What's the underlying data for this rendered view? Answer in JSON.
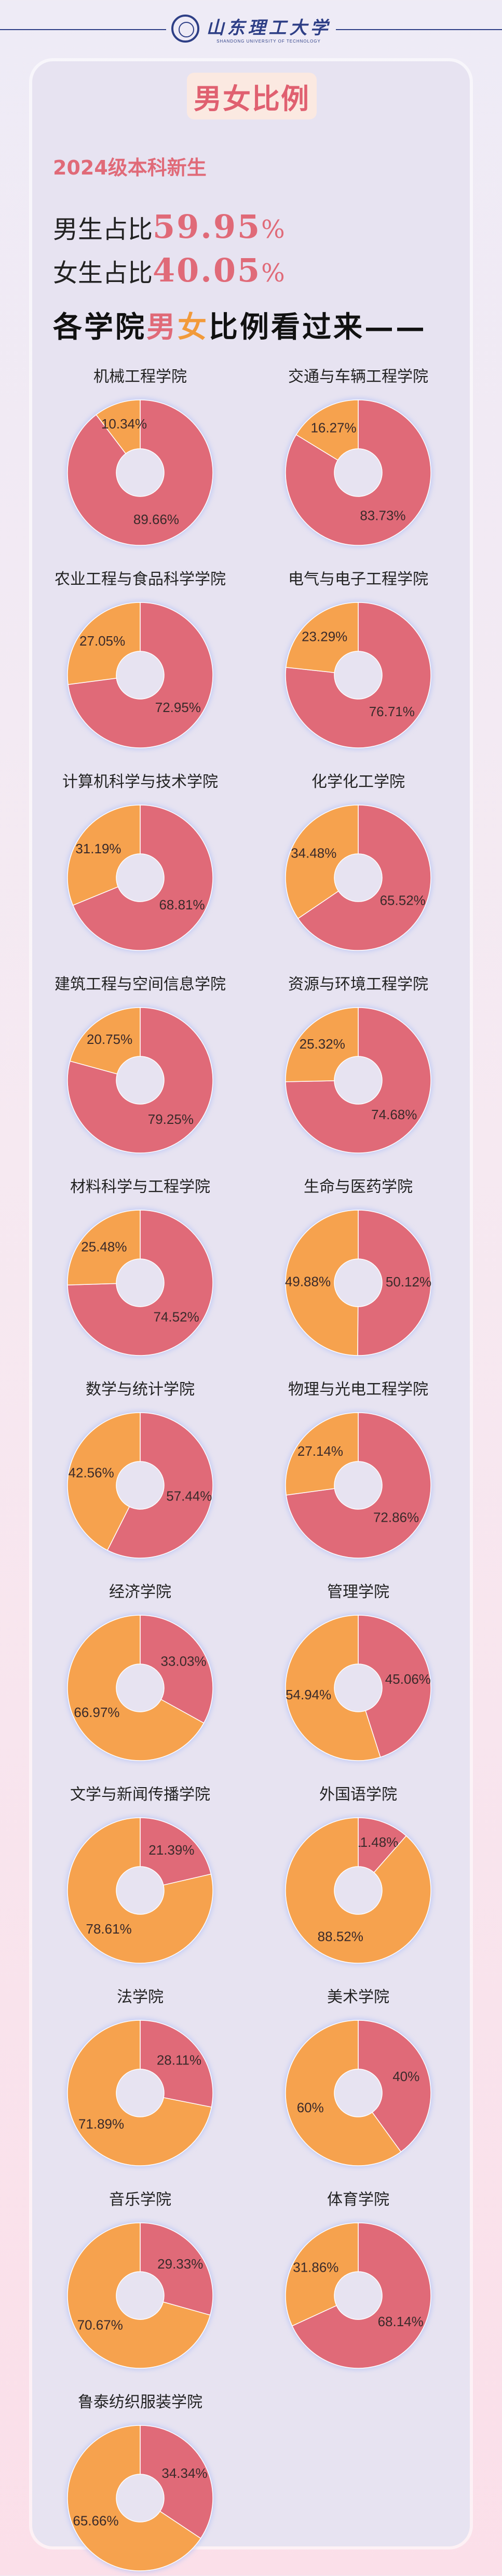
{
  "header": {
    "logo_cn": "山东理工大学",
    "logo_en": "SHANDONG UNIVERSITY OF TECHNOLOGY"
  },
  "title": "男女比例",
  "subtitle": "2024级本科新生",
  "male_stat": {
    "prefix": "男生占比",
    "value": "59.95",
    "unit": "%"
  },
  "female_stat": {
    "prefix": "女生占比",
    "value": "40.05",
    "unit": "%"
  },
  "section_heading": {
    "before": "各学院",
    "male_char": "男",
    "female_char": "女",
    "after": "比例看过来——"
  },
  "colors": {
    "male": "#e06a78",
    "female": "#f6a24e"
  },
  "chart_data": [
    {
      "type": "pie",
      "title": "机械工程学院",
      "categories": [
        "男",
        "女"
      ],
      "values": [
        89.66,
        10.34
      ],
      "labels": [
        "89.66%",
        "10.34%"
      ]
    },
    {
      "type": "pie",
      "title": "交通与车辆工程学院",
      "categories": [
        "男",
        "女"
      ],
      "values": [
        83.73,
        16.27
      ],
      "labels": [
        "83.73%",
        "16.27%"
      ]
    },
    {
      "type": "pie",
      "title": "农业工程与食品科学学院",
      "categories": [
        "男",
        "女"
      ],
      "values": [
        72.95,
        27.05
      ],
      "labels": [
        "72.95%",
        "27.05%"
      ]
    },
    {
      "type": "pie",
      "title": "电气与电子工程学院",
      "categories": [
        "男",
        "女"
      ],
      "values": [
        76.71,
        23.29
      ],
      "labels": [
        "76.71%",
        "23.29%"
      ]
    },
    {
      "type": "pie",
      "title": "计算机科学与技术学院",
      "categories": [
        "男",
        "女"
      ],
      "values": [
        68.81,
        31.19
      ],
      "labels": [
        "68.81%",
        "31.19%"
      ]
    },
    {
      "type": "pie",
      "title": "化学化工学院",
      "categories": [
        "男",
        "女"
      ],
      "values": [
        65.52,
        34.48
      ],
      "labels": [
        "65.52%",
        "34.48%"
      ]
    },
    {
      "type": "pie",
      "title": "建筑工程与空间信息学院",
      "categories": [
        "男",
        "女"
      ],
      "values": [
        79.25,
        20.75
      ],
      "labels": [
        "79.25%",
        "20.75%"
      ]
    },
    {
      "type": "pie",
      "title": "资源与环境工程学院",
      "categories": [
        "男",
        "女"
      ],
      "values": [
        74.68,
        25.32
      ],
      "labels": [
        "74.68%",
        "25.32%"
      ]
    },
    {
      "type": "pie",
      "title": "材料科学与工程学院",
      "categories": [
        "男",
        "女"
      ],
      "values": [
        74.52,
        25.48
      ],
      "labels": [
        "74.52%",
        "25.48%"
      ]
    },
    {
      "type": "pie",
      "title": "生命与医药学院",
      "categories": [
        "男",
        "女"
      ],
      "values": [
        50.12,
        49.88
      ],
      "labels": [
        "50.12%",
        "49.88%"
      ]
    },
    {
      "type": "pie",
      "title": "数学与统计学院",
      "categories": [
        "男",
        "女"
      ],
      "values": [
        57.44,
        42.56
      ],
      "labels": [
        "57.44%",
        "42.56%"
      ]
    },
    {
      "type": "pie",
      "title": "物理与光电工程学院",
      "categories": [
        "男",
        "女"
      ],
      "values": [
        72.86,
        27.14
      ],
      "labels": [
        "72.86%",
        "27.14%"
      ]
    },
    {
      "type": "pie",
      "title": "经济学院",
      "categories": [
        "男",
        "女"
      ],
      "values": [
        33.03,
        66.97
      ],
      "labels": [
        "33.03%",
        "66.97%"
      ]
    },
    {
      "type": "pie",
      "title": "管理学院",
      "categories": [
        "男",
        "女"
      ],
      "values": [
        45.06,
        54.94
      ],
      "labels": [
        "45.06%",
        "54.94%"
      ]
    },
    {
      "type": "pie",
      "title": "文学与新闻传播学院",
      "categories": [
        "男",
        "女"
      ],
      "values": [
        21.39,
        78.61
      ],
      "labels": [
        "21.39%",
        "78.61%"
      ]
    },
    {
      "type": "pie",
      "title": "外国语学院",
      "categories": [
        "男",
        "女"
      ],
      "values": [
        11.48,
        88.52
      ],
      "labels": [
        "11.48%",
        "88.52%"
      ]
    },
    {
      "type": "pie",
      "title": "法学院",
      "categories": [
        "男",
        "女"
      ],
      "values": [
        28.11,
        71.89
      ],
      "labels": [
        "28.11%",
        "71.89%"
      ]
    },
    {
      "type": "pie",
      "title": "美术学院",
      "categories": [
        "男",
        "女"
      ],
      "values": [
        40,
        60
      ],
      "labels": [
        "40%",
        "60%"
      ]
    },
    {
      "type": "pie",
      "title": "音乐学院",
      "categories": [
        "男",
        "女"
      ],
      "values": [
        29.33,
        70.67
      ],
      "labels": [
        "29.33%",
        "70.67%"
      ]
    },
    {
      "type": "pie",
      "title": "体育学院",
      "categories": [
        "男",
        "女"
      ],
      "values": [
        68.14,
        31.86
      ],
      "labels": [
        "68.14%",
        "31.86%"
      ]
    },
    {
      "type": "pie",
      "title": "鲁泰纺织服装学院",
      "categories": [
        "男",
        "女"
      ],
      "values": [
        34.34,
        65.66
      ],
      "labels": [
        "34.34%",
        "65.66%"
      ]
    }
  ]
}
